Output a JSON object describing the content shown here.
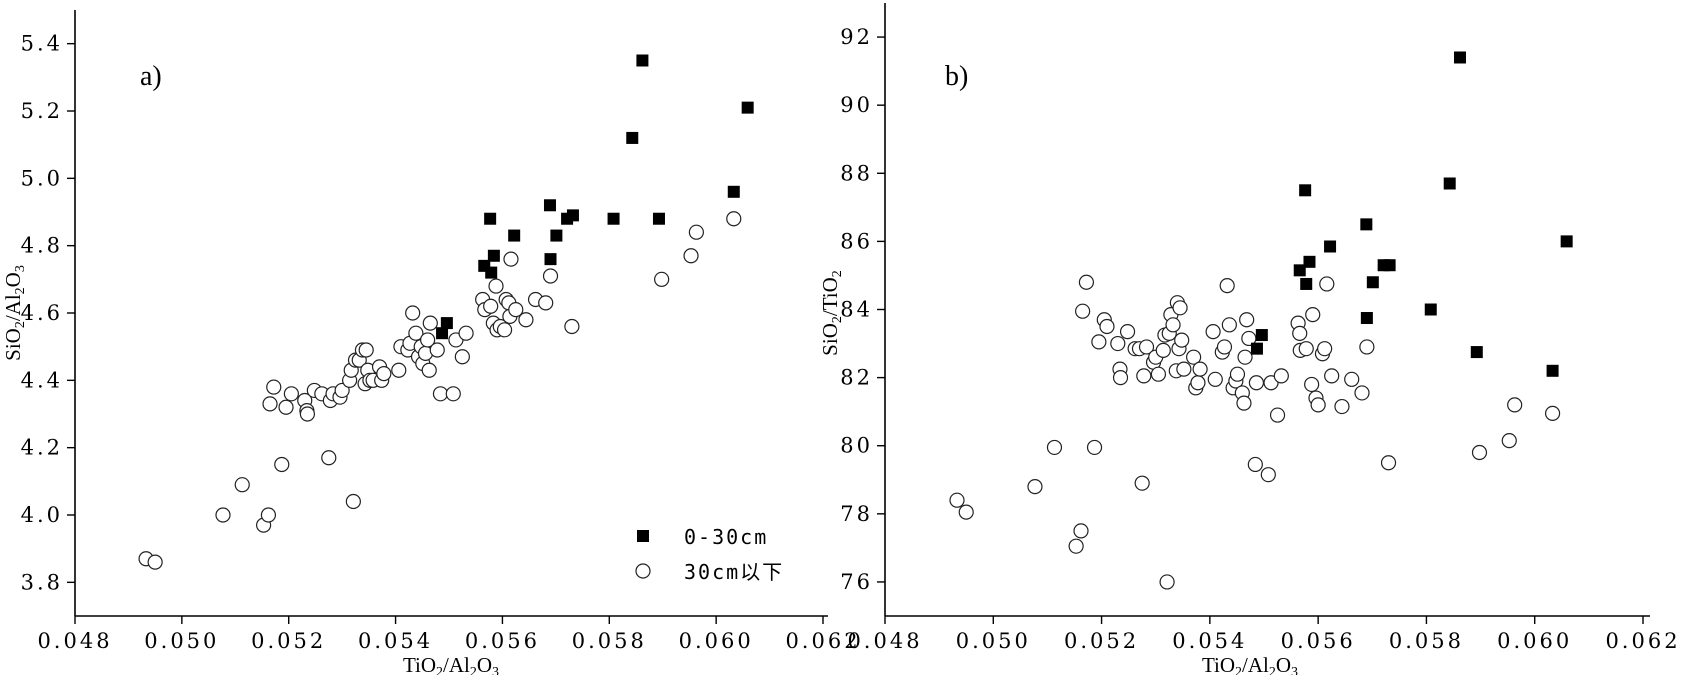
{
  "chart_data": [
    {
      "type": "scatter",
      "panel_label": "a)",
      "xlabel": {
        "pre": "TiO",
        "sub1": "2",
        "mid": "/Al",
        "sub2": "2",
        "post": "O",
        "sub3": "3"
      },
      "ylabel": {
        "pre": "SiO",
        "sub1": "2",
        "mid": "/Al",
        "sub2": "2",
        "post": "O",
        "sub3": "3"
      },
      "xlim": [
        0.048,
        0.062
      ],
      "ylim": [
        3.7,
        5.5
      ],
      "x_ticks": [
        "0.048",
        "0.050",
        "0.052",
        "0.054",
        "0.056",
        "0.058",
        "0.060",
        "0.062"
      ],
      "y_ticks": [
        "3.8",
        "4.0",
        "4.2",
        "4.4",
        "4.6",
        "4.8",
        "5.0",
        "5.2",
        "5.4"
      ],
      "legend": {
        "position": "bottom-right",
        "entries": [
          "0-30cm",
          "30cm以下"
        ]
      },
      "series": [
        {
          "name": "0-30cm",
          "marker": "filled-square",
          "points": [
            [
              0.05487,
              4.54
            ],
            [
              0.05496,
              4.57
            ],
            [
              0.05566,
              4.74
            ],
            [
              0.05579,
              4.72
            ],
            [
              0.05584,
              4.77
            ],
            [
              0.05577,
              4.88
            ],
            [
              0.05622,
              4.83
            ],
            [
              0.0569,
              4.76
            ],
            [
              0.05689,
              4.92
            ],
            [
              0.05701,
              4.83
            ],
            [
              0.05721,
              4.88
            ],
            [
              0.05732,
              4.89
            ],
            [
              0.05808,
              4.88
            ],
            [
              0.05843,
              5.12
            ],
            [
              0.05862,
              5.35
            ],
            [
              0.05893,
              4.88
            ],
            [
              0.06033,
              4.96
            ],
            [
              0.06059,
              5.21
            ]
          ]
        },
        {
          "name": "30cm以下",
          "marker": "open-circle",
          "points": [
            [
              0.04933,
              3.87
            ],
            [
              0.0495,
              3.86
            ],
            [
              0.05077,
              4.0
            ],
            [
              0.05113,
              4.09
            ],
            [
              0.05153,
              3.97
            ],
            [
              0.05162,
              4.0
            ],
            [
              0.05165,
              4.33
            ],
            [
              0.05172,
              4.38
            ],
            [
              0.05187,
              4.15
            ],
            [
              0.05195,
              4.32
            ],
            [
              0.05205,
              4.36
            ],
            [
              0.0523,
              4.34
            ],
            [
              0.05234,
              4.31
            ],
            [
              0.05235,
              4.3
            ],
            [
              0.05248,
              4.37
            ],
            [
              0.05262,
              4.36
            ],
            [
              0.05275,
              4.17
            ],
            [
              0.05278,
              4.34
            ],
            [
              0.05283,
              4.36
            ],
            [
              0.05296,
              4.35
            ],
            [
              0.053,
              4.37
            ],
            [
              0.05314,
              4.4
            ],
            [
              0.05317,
              4.43
            ],
            [
              0.05321,
              4.04
            ],
            [
              0.05325,
              4.46
            ],
            [
              0.05332,
              4.46
            ],
            [
              0.05338,
              4.49
            ],
            [
              0.05343,
              4.39
            ],
            [
              0.05345,
              4.49
            ],
            [
              0.05348,
              4.43
            ],
            [
              0.05352,
              4.4
            ],
            [
              0.05358,
              4.4
            ],
            [
              0.0537,
              4.44
            ],
            [
              0.05374,
              4.4
            ],
            [
              0.05378,
              4.42
            ],
            [
              0.05406,
              4.43
            ],
            [
              0.0541,
              4.5
            ],
            [
              0.05423,
              4.49
            ],
            [
              0.05427,
              4.51
            ],
            [
              0.05432,
              4.6
            ],
            [
              0.05438,
              4.54
            ],
            [
              0.05443,
              4.47
            ],
            [
              0.05448,
              4.5
            ],
            [
              0.05451,
              4.45
            ],
            [
              0.05456,
              4.48
            ],
            [
              0.0546,
              4.52
            ],
            [
              0.05463,
              4.43
            ],
            [
              0.05465,
              4.57
            ],
            [
              0.05478,
              4.49
            ],
            [
              0.05484,
              4.36
            ],
            [
              0.05508,
              4.36
            ],
            [
              0.05513,
              4.52
            ],
            [
              0.05525,
              4.47
            ],
            [
              0.05532,
              4.54
            ],
            [
              0.05563,
              4.64
            ],
            [
              0.05567,
              4.61
            ],
            [
              0.05578,
              4.62
            ],
            [
              0.05583,
              4.57
            ],
            [
              0.05588,
              4.68
            ],
            [
              0.0559,
              4.55
            ],
            [
              0.05596,
              4.56
            ],
            [
              0.05604,
              4.55
            ],
            [
              0.05607,
              4.64
            ],
            [
              0.05612,
              4.63
            ],
            [
              0.05614,
              4.59
            ],
            [
              0.05616,
              4.76
            ],
            [
              0.05625,
              4.61
            ],
            [
              0.05644,
              4.58
            ],
            [
              0.05662,
              4.64
            ],
            [
              0.05681,
              4.63
            ],
            [
              0.0569,
              4.71
            ],
            [
              0.0573,
              4.56
            ],
            [
              0.05898,
              4.7
            ],
            [
              0.05953,
              4.77
            ],
            [
              0.05963,
              4.84
            ],
            [
              0.06033,
              4.88
            ]
          ]
        }
      ]
    },
    {
      "type": "scatter",
      "panel_label": "b)",
      "xlabel": {
        "pre": "TiO",
        "sub1": "2",
        "mid": "/Al",
        "sub2": "2",
        "post": "O",
        "sub3": "3"
      },
      "ylabel": {
        "pre": "SiO",
        "sub1": "2",
        "mid": "/TiO",
        "sub2": "2",
        "post": "",
        "sub3": ""
      },
      "xlim": [
        0.048,
        0.062
      ],
      "ylim": [
        75.0,
        93.0
      ],
      "x_ticks": [
        "0.048",
        "0.050",
        "0.052",
        "0.054",
        "0.056",
        "0.058",
        "0.060",
        "0.062"
      ],
      "y_ticks": [
        "76",
        "78",
        "80",
        "82",
        "84",
        "86",
        "88",
        "90",
        "92"
      ],
      "series": [
        {
          "name": "0-30cm",
          "marker": "filled-square",
          "points": [
            [
              0.05487,
              82.85
            ],
            [
              0.05496,
              83.25
            ],
            [
              0.05566,
              85.15
            ],
            [
              0.05576,
              87.5
            ],
            [
              0.05578,
              84.75
            ],
            [
              0.05584,
              85.4
            ],
            [
              0.05622,
              85.85
            ],
            [
              0.05689,
              86.5
            ],
            [
              0.0569,
              83.75
            ],
            [
              0.05701,
              84.8
            ],
            [
              0.05721,
              85.3
            ],
            [
              0.05732,
              85.3
            ],
            [
              0.05808,
              84.0
            ],
            [
              0.05843,
              87.7
            ],
            [
              0.05862,
              91.4
            ],
            [
              0.05893,
              82.75
            ],
            [
              0.06033,
              82.2
            ],
            [
              0.06059,
              86.0
            ]
          ]
        },
        {
          "name": "30cm以下",
          "marker": "open-circle",
          "points": [
            [
              0.04933,
              78.4
            ],
            [
              0.0495,
              78.05
            ],
            [
              0.05077,
              78.8
            ],
            [
              0.05113,
              79.95
            ],
            [
              0.05153,
              77.05
            ],
            [
              0.05162,
              77.5
            ],
            [
              0.05165,
              83.95
            ],
            [
              0.05172,
              84.8
            ],
            [
              0.05187,
              79.95
            ],
            [
              0.05195,
              83.05
            ],
            [
              0.05205,
              83.7
            ],
            [
              0.0521,
              83.5
            ],
            [
              0.0523,
              83.0
            ],
            [
              0.05234,
              82.25
            ],
            [
              0.05235,
              82.0
            ],
            [
              0.05248,
              83.35
            ],
            [
              0.05262,
              82.85
            ],
            [
              0.0527,
              82.85
            ],
            [
              0.05275,
              78.9
            ],
            [
              0.05278,
              82.05
            ],
            [
              0.05283,
              82.9
            ],
            [
              0.05296,
              82.45
            ],
            [
              0.053,
              82.6
            ],
            [
              0.05305,
              82.1
            ],
            [
              0.05314,
              82.8
            ],
            [
              0.05317,
              83.25
            ],
            [
              0.05321,
              76.0
            ],
            [
              0.05325,
              83.3
            ],
            [
              0.05328,
              83.85
            ],
            [
              0.05332,
              83.55
            ],
            [
              0.05338,
              82.2
            ],
            [
              0.0534,
              84.2
            ],
            [
              0.05343,
              82.85
            ],
            [
              0.05345,
              84.05
            ],
            [
              0.05348,
              83.1
            ],
            [
              0.05352,
              82.25
            ],
            [
              0.0537,
              82.6
            ],
            [
              0.05374,
              81.7
            ],
            [
              0.05378,
              81.85
            ],
            [
              0.05382,
              82.25
            ],
            [
              0.05406,
              83.35
            ],
            [
              0.0541,
              81.95
            ],
            [
              0.05423,
              82.75
            ],
            [
              0.05427,
              82.9
            ],
            [
              0.05432,
              84.7
            ],
            [
              0.05436,
              83.55
            ],
            [
              0.05443,
              81.7
            ],
            [
              0.05448,
              81.9
            ],
            [
              0.05451,
              82.1
            ],
            [
              0.0546,
              81.55
            ],
            [
              0.05463,
              81.25
            ],
            [
              0.05465,
              82.6
            ],
            [
              0.05468,
              83.7
            ],
            [
              0.05472,
              83.15
            ],
            [
              0.05484,
              79.45
            ],
            [
              0.05486,
              81.85
            ],
            [
              0.05508,
              79.15
            ],
            [
              0.05513,
              81.85
            ],
            [
              0.05525,
              80.9
            ],
            [
              0.05532,
              82.05
            ],
            [
              0.05563,
              83.6
            ],
            [
              0.05566,
              83.3
            ],
            [
              0.05567,
              82.8
            ],
            [
              0.05578,
              82.85
            ],
            [
              0.05588,
              81.8
            ],
            [
              0.0559,
              83.85
            ],
            [
              0.05596,
              81.4
            ],
            [
              0.056,
              81.2
            ],
            [
              0.05608,
              82.7
            ],
            [
              0.05612,
              82.85
            ],
            [
              0.05616,
              84.75
            ],
            [
              0.05625,
              82.05
            ],
            [
              0.05644,
              81.15
            ],
            [
              0.05662,
              81.95
            ],
            [
              0.05681,
              81.55
            ],
            [
              0.0569,
              82.9
            ],
            [
              0.0573,
              79.5
            ],
            [
              0.05898,
              79.8
            ],
            [
              0.05953,
              80.15
            ],
            [
              0.05963,
              81.2
            ],
            [
              0.06033,
              80.95
            ]
          ]
        }
      ]
    }
  ]
}
